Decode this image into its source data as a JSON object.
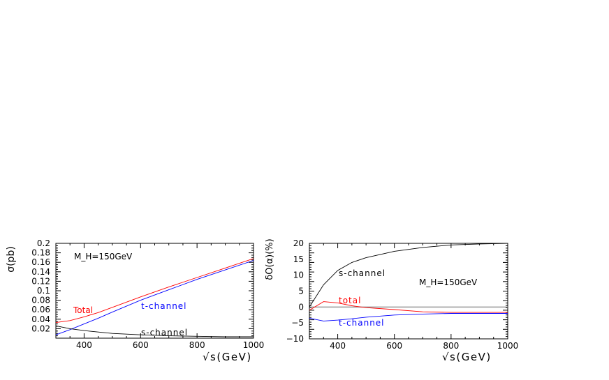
{
  "chart_data": [
    {
      "type": "line",
      "xlabel": "√s(GeV)",
      "ylabel": "σ(pb)",
      "xlim": [
        300,
        1000
      ],
      "ylim": [
        0,
        0.2
      ],
      "xticks": [
        "400",
        "600",
        "800",
        "1000"
      ],
      "xtick_values": [
        400,
        600,
        800,
        1000
      ],
      "yticks": [
        "0.02",
        "0.04",
        "0.06",
        "0.08",
        "0.1",
        "0.12",
        "0.14",
        "0.16",
        "0.18",
        "0.2"
      ],
      "ytick_values": [
        0.02,
        0.04,
        0.06,
        0.08,
        0.1,
        0.12,
        0.14,
        0.16,
        0.18,
        0.2
      ],
      "annotation": "M_H=150GeV",
      "grid": false,
      "series": [
        {
          "name": "Total",
          "color": "#ff0000",
          "x": [
            300,
            350,
            400,
            450,
            500,
            600,
            700,
            800,
            900,
            1000
          ],
          "y": [
            0.033,
            0.037,
            0.045,
            0.054,
            0.065,
            0.087,
            0.108,
            0.128,
            0.148,
            0.168
          ]
        },
        {
          "name": "t-channel",
          "color": "#0000ff",
          "x": [
            300,
            350,
            400,
            450,
            500,
            600,
            700,
            800,
            900,
            1000
          ],
          "y": [
            0.007,
            0.018,
            0.03,
            0.042,
            0.055,
            0.08,
            0.102,
            0.124,
            0.144,
            0.164
          ]
        },
        {
          "name": "s-channel",
          "color": "#000000",
          "x": [
            300,
            350,
            400,
            450,
            500,
            600,
            700,
            800,
            900,
            1000
          ],
          "y": [
            0.026,
            0.02,
            0.016,
            0.013,
            0.01,
            0.007,
            0.005,
            0.004,
            0.003,
            0.003
          ]
        }
      ]
    },
    {
      "type": "line",
      "xlabel": "√s(GeV)",
      "ylabel": "δO(α)(%)",
      "xlim": [
        300,
        1000
      ],
      "ylim": [
        -10,
        20
      ],
      "xticks": [
        "400",
        "600",
        "800",
        "1000"
      ],
      "xtick_values": [
        400,
        600,
        800,
        1000
      ],
      "yticks": [
        "−10",
        "−5",
        "0",
        "5",
        "10",
        "15",
        "20"
      ],
      "ytick_values": [
        -10,
        -5,
        0,
        5,
        10,
        15,
        20
      ],
      "annotation": "M_H=150GeV",
      "grid": false,
      "zero_line": true,
      "series": [
        {
          "name": "s-channel",
          "color": "#000000",
          "x": [
            300,
            350,
            400,
            450,
            500,
            600,
            700,
            800,
            900,
            1000
          ],
          "y": [
            0,
            7,
            11.5,
            14,
            15.5,
            17.5,
            18.7,
            19.5,
            19.8,
            20
          ]
        },
        {
          "name": "total",
          "color": "#ff0000",
          "x": [
            300,
            350,
            400,
            450,
            500,
            600,
            700,
            800,
            900,
            1000
          ],
          "y": [
            -1,
            1.7,
            1.3,
            0.4,
            -0.2,
            -0.8,
            -1.5,
            -1.7,
            -1.7,
            -1.7
          ]
        },
        {
          "name": "t-channel",
          "color": "#0000ff",
          "x": [
            300,
            350,
            400,
            450,
            500,
            600,
            700,
            800,
            900,
            1000
          ],
          "y": [
            -3.5,
            -4.4,
            -4.1,
            -3.7,
            -3.2,
            -2.5,
            -2.2,
            -2,
            -2,
            -2
          ]
        }
      ]
    }
  ]
}
